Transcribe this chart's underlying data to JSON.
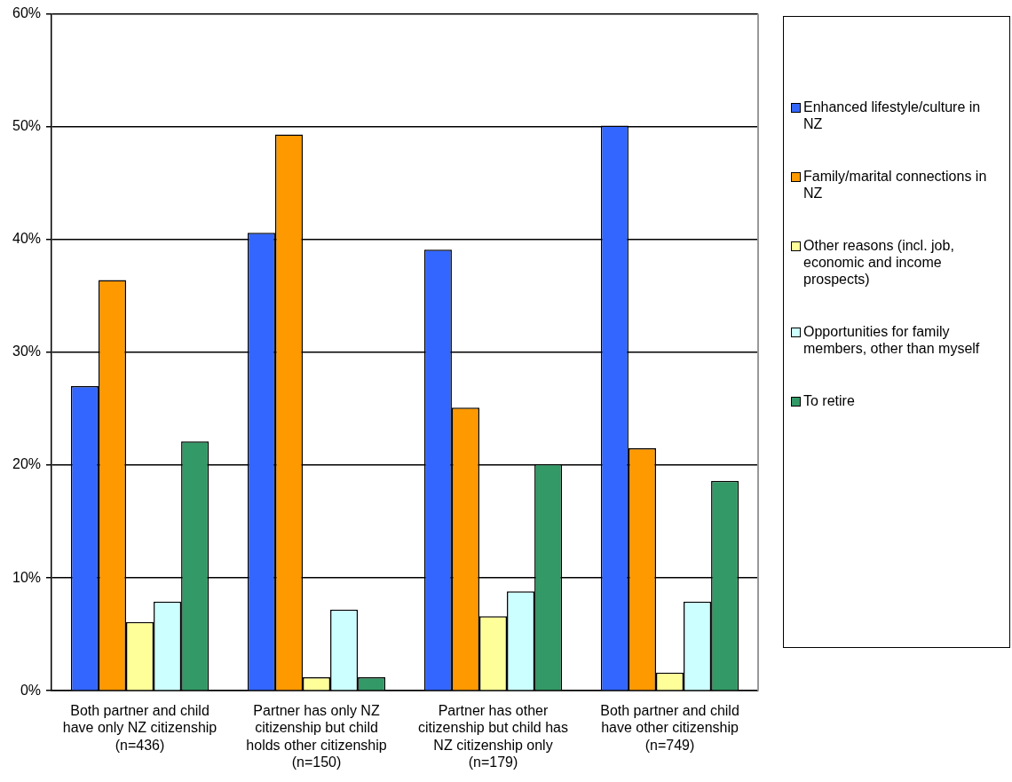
{
  "chart_data": {
    "type": "bar",
    "categories": [
      "Both partner and child have only NZ citizenship (n=436)",
      "Partner has only NZ citizenship but child holds other citizenship (n=150)",
      "Partner has other citizenship but child has NZ citizenship only (n=179)",
      "Both partner and child have other citizenship (n=749)"
    ],
    "series": [
      {
        "name": "Enhanced lifestyle/culture in NZ",
        "color": "#3366ff",
        "values": [
          27.0,
          40.6,
          39.1,
          50.1
        ]
      },
      {
        "name": "Family/marital connections in NZ",
        "color": "#ff9900",
        "values": [
          36.4,
          49.3,
          25.1,
          21.5
        ]
      },
      {
        "name": "Other reasons (incl. job, economic and income prospects)",
        "color": "#ffff99",
        "values": [
          6.1,
          1.2,
          6.6,
          1.6
        ]
      },
      {
        "name": "Opportunities for family members, other than myself",
        "color": "#ccffff",
        "values": [
          7.9,
          7.2,
          8.8,
          7.9
        ]
      },
      {
        "name": "To retire",
        "color": "#339966",
        "values": [
          22.1,
          1.2,
          20.1,
          18.6
        ]
      }
    ],
    "ylim": [
      0,
      60
    ],
    "yticks": [
      {
        "value": 0,
        "label": "0%"
      },
      {
        "value": 10,
        "label": "10%"
      },
      {
        "value": 20,
        "label": "20%"
      },
      {
        "value": 30,
        "label": "30%"
      },
      {
        "value": 40,
        "label": "40%"
      },
      {
        "value": 50,
        "label": "50%"
      },
      {
        "value": 60,
        "label": "60%"
      }
    ],
    "grid": "y",
    "legend": "right"
  }
}
